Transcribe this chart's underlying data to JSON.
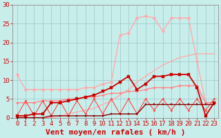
{
  "title": "",
  "xlabel": "Vent moyen/en rafales ( km/h )",
  "bg_color": "#c8eeec",
  "grid_color": "#a0ccca",
  "x_values": [
    0,
    1,
    2,
    3,
    4,
    5,
    6,
    7,
    8,
    9,
    10,
    11,
    12,
    13,
    14,
    15,
    16,
    17,
    18,
    19,
    20,
    21,
    22,
    23
  ],
  "ylim": [
    0,
    30
  ],
  "yticks": [
    0,
    5,
    10,
    15,
    20,
    25,
    30
  ],
  "line_ramp": {
    "y": [
      0.0,
      0.0,
      0.0,
      0.0,
      0.0,
      0.5,
      1.0,
      1.5,
      2.0,
      2.5,
      3.5,
      4.5,
      6.0,
      7.5,
      9.5,
      11.0,
      12.5,
      14.0,
      15.0,
      16.0,
      16.5,
      17.0,
      17.0,
      17.0
    ],
    "color": "#ffaaaa",
    "marker": null,
    "lw": 1.0
  },
  "line_upper": {
    "y": [
      11.5,
      7.5,
      7.5,
      7.5,
      7.5,
      7.5,
      7.5,
      7.5,
      8.0,
      8.0,
      9.0,
      9.5,
      22.0,
      22.5,
      26.5,
      27.0,
      26.5,
      23.0,
      26.5,
      26.5,
      26.5,
      15.0,
      4.0,
      4.0
    ],
    "color": "#ffaaaa",
    "marker": "D",
    "markersize": 2.5,
    "lw": 1.0
  },
  "line_mid_pink": {
    "y": [
      4.0,
      4.0,
      4.0,
      4.5,
      4.5,
      4.5,
      5.0,
      5.0,
      5.5,
      5.5,
      6.0,
      6.5,
      6.5,
      7.0,
      7.0,
      7.5,
      8.0,
      8.0,
      8.0,
      8.5,
      8.5,
      8.5,
      4.0,
      4.0
    ],
    "color": "#ff8888",
    "marker": "D",
    "markersize": 2.0,
    "lw": 1.0
  },
  "line_zigzag_red": {
    "y": [
      0.5,
      4.5,
      0.5,
      4.5,
      0.5,
      4.5,
      0.5,
      4.5,
      1.0,
      5.0,
      1.0,
      5.0,
      1.0,
      5.0,
      1.0,
      5.0,
      2.0,
      5.0,
      2.0,
      5.0,
      2.0,
      5.0,
      2.0,
      5.0
    ],
    "color": "#ff4444",
    "marker": "o",
    "markersize": 1.8,
    "lw": 0.8
  },
  "line_main_dark": {
    "y": [
      0.5,
      0.5,
      1.0,
      1.0,
      4.0,
      4.0,
      4.5,
      5.0,
      5.5,
      6.0,
      7.0,
      8.0,
      9.5,
      11.0,
      7.5,
      9.0,
      11.0,
      11.0,
      11.5,
      11.5,
      11.5,
      8.0,
      0.5,
      4.0
    ],
    "color": "#cc0000",
    "marker": "s",
    "markersize": 2.5,
    "lw": 1.3
  },
  "line_low_dark": {
    "y": [
      0.0,
      0.0,
      0.0,
      0.0,
      0.5,
      0.5,
      0.5,
      0.5,
      0.5,
      0.5,
      0.5,
      1.0,
      1.0,
      1.0,
      1.0,
      3.5,
      3.5,
      3.5,
      3.5,
      3.5,
      3.5,
      3.5,
      3.5,
      3.5
    ],
    "color": "#880000",
    "marker": "s",
    "markersize": 2.0,
    "lw": 1.0
  },
  "xlabel_color": "#cc0000",
  "xlabel_fontsize": 8,
  "tick_color": "#cc0000",
  "tick_fontsize": 6.5
}
